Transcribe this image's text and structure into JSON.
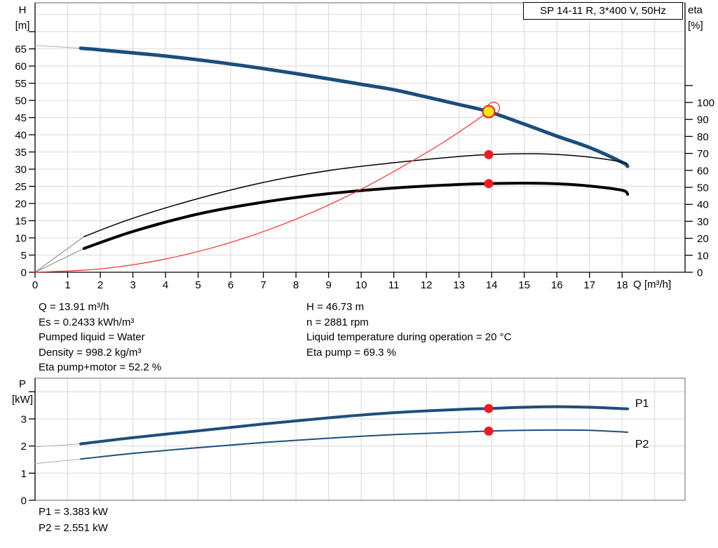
{
  "title_box": {
    "label": "SP 14-11 R, 3*400 V, 50Hz"
  },
  "colors": {
    "curve_blue": "#1b4e7e",
    "curve_black": "#000000",
    "curve_red": "#ff2b25",
    "marker_red": "#ec1c24",
    "marker_yellow": "#ffe60a",
    "lead_blue": "#9fb0c8",
    "lead_gray": "#808080",
    "grid": "#d9d9d9",
    "frame": "#666666",
    "axis": "#000000",
    "label_blue": "#1b4e7e"
  },
  "annotations": {
    "left": [
      "Q = 13.91 m³/h",
      "Es = 0.2433 kWh/m³",
      "Pumped liquid = Water",
      "Density = 998.2 kg/m³",
      "Eta pump+motor = 52.2 %"
    ],
    "right": [
      "H = 46.73 m",
      "n = 2881 rpm",
      "Liquid temperature during operation = 20 °C",
      "Eta pump = 69.3 %"
    ],
    "power": [
      "P1 = 3.383 kW",
      "P2 = 2.551 kW"
    ]
  },
  "chart_data": [
    {
      "type": "line",
      "title": "SP 14-11 R, 3*400 V, 50Hz",
      "x_axis": {
        "label": "Q [m³/h]",
        "min": 0,
        "max": 19.93,
        "grid_step": 1,
        "tick_step": 1,
        "tick_max": 18,
        "label_max": 18
      },
      "y_left": {
        "name": "H",
        "unit": "[m]",
        "min": 0,
        "max": 78.4,
        "grid_step": 5,
        "tick_step": 5,
        "tick_max": 70,
        "label_max": 65
      },
      "y_right": {
        "name": "eta",
        "unit": "[%]",
        "min": 0,
        "max": 158.7,
        "tick_step": 10,
        "tick_max": 110,
        "label_max": 100
      },
      "series": [
        {
          "name": "H-curve-lead",
          "axis": "left",
          "color": "lead_blue",
          "width": 1,
          "points": [
            [
              0,
              66.0
            ],
            [
              1.4,
              65.2
            ]
          ]
        },
        {
          "name": "H-curve",
          "axis": "left",
          "color": "curve_blue",
          "width": 5,
          "points": [
            [
              1.4,
              65.2
            ],
            [
              2,
              64.7
            ],
            [
              4,
              62.9
            ],
            [
              6,
              60.6
            ],
            [
              8,
              57.8
            ],
            [
              10,
              54.7
            ],
            [
              11,
              53.1
            ],
            [
              12,
              51.0
            ],
            [
              13,
              48.8
            ],
            [
              13.91,
              46.73
            ],
            [
              15,
              43.1
            ],
            [
              16,
              39.6
            ],
            [
              17,
              36.3
            ],
            [
              18,
              32.0
            ],
            [
              18.17,
              30.8
            ]
          ]
        },
        {
          "name": "eta-pump-lead",
          "axis": "right",
          "color": "lead_gray",
          "width": 1,
          "points": [
            [
              0,
              0
            ],
            [
              1.5,
              21
            ]
          ]
        },
        {
          "name": "eta-pump-motor-lead",
          "axis": "right",
          "color": "lead_gray",
          "width": 1,
          "points": [
            [
              0,
              0
            ],
            [
              1.5,
              14
            ]
          ]
        },
        {
          "name": "eta-pump",
          "axis": "right",
          "color": "curve_black",
          "width": 1.5,
          "points": [
            [
              1.5,
              21
            ],
            [
              3,
              31.8
            ],
            [
              5,
              43.4
            ],
            [
              7,
              52.9
            ],
            [
              9,
              59.9
            ],
            [
              11,
              64.5
            ],
            [
              13,
              68.2
            ],
            [
              13.91,
              69.3
            ],
            [
              15,
              69.8
            ],
            [
              16,
              69.4
            ],
            [
              17,
              67.8
            ],
            [
              18,
              64.9
            ],
            [
              18.17,
              63.4
            ]
          ]
        },
        {
          "name": "eta-pump-motor",
          "axis": "right",
          "color": "curve_black",
          "width": 4,
          "points": [
            [
              1.5,
              14
            ],
            [
              3,
              24.0
            ],
            [
              5,
              34.3
            ],
            [
              7,
              41.3
            ],
            [
              9,
              46.3
            ],
            [
              11,
              49.6
            ],
            [
              13,
              51.7
            ],
            [
              13.91,
              52.2
            ],
            [
              15,
              52.5
            ],
            [
              16,
              52.1
            ],
            [
              17,
              50.8
            ],
            [
              18,
              48.3
            ],
            [
              18.17,
              45.9
            ]
          ]
        },
        {
          "name": "system-curve",
          "axis": "left",
          "color": "curve_red",
          "width": 1.2,
          "points": [
            [
              0,
              0
            ],
            [
              2,
              0.97
            ],
            [
              4,
              3.86
            ],
            [
              6,
              8.69
            ],
            [
              8,
              15.46
            ],
            [
              10,
              24.15
            ],
            [
              12,
              34.78
            ],
            [
              13,
              40.81
            ],
            [
              13.91,
              46.73
            ]
          ]
        }
      ],
      "markers": [
        {
          "kind": "duty",
          "axis": "left",
          "x": 13.91,
          "y": 46.73
        },
        {
          "kind": "dot",
          "axis": "right",
          "x": 13.91,
          "y": 69.3
        },
        {
          "kind": "dot",
          "axis": "right",
          "x": 13.91,
          "y": 52.2
        }
      ]
    },
    {
      "type": "line",
      "x_axis": {
        "min": 0,
        "max": 19.93,
        "grid_step": 1
      },
      "y_left": {
        "name": "P",
        "unit": "[kW]",
        "min": 0,
        "max": 4.5,
        "grid_step": 1,
        "tick_step": 1,
        "tick_max": 4,
        "label_max": 3
      },
      "series": [
        {
          "name": "P1-lead",
          "axis": "left",
          "color": "lead_blue",
          "width": 1,
          "points": [
            [
              0,
              1.97
            ],
            [
              1.4,
              2.08
            ]
          ]
        },
        {
          "name": "P1",
          "axis": "left",
          "color": "curve_blue",
          "width": 4,
          "label": "P1",
          "label_at": [
            18.4,
            3.44
          ],
          "points": [
            [
              1.4,
              2.08
            ],
            [
              3,
              2.31
            ],
            [
              5,
              2.56
            ],
            [
              7,
              2.81
            ],
            [
              9,
              3.04
            ],
            [
              11,
              3.23
            ],
            [
              13,
              3.35
            ],
            [
              13.91,
              3.383
            ],
            [
              15,
              3.43
            ],
            [
              16,
              3.45
            ],
            [
              17,
              3.43
            ],
            [
              18.17,
              3.37
            ]
          ]
        },
        {
          "name": "P2-lead",
          "axis": "left",
          "color": "lead_blue",
          "width": 1,
          "points": [
            [
              0,
              1.35
            ],
            [
              1.4,
              1.52
            ]
          ]
        },
        {
          "name": "P2",
          "axis": "left",
          "color": "curve_blue",
          "width": 2,
          "label": "P2",
          "label_at": [
            18.4,
            1.94
          ],
          "points": [
            [
              1.4,
              1.52
            ],
            [
              3,
              1.73
            ],
            [
              5,
              1.94
            ],
            [
              7,
              2.13
            ],
            [
              9,
              2.29
            ],
            [
              11,
              2.42
            ],
            [
              13,
              2.51
            ],
            [
              13.91,
              2.551
            ],
            [
              15,
              2.58
            ],
            [
              16,
              2.59
            ],
            [
              17,
              2.58
            ],
            [
              18.17,
              2.51
            ]
          ]
        }
      ],
      "markers": [
        {
          "kind": "dot",
          "axis": "left",
          "x": 13.91,
          "y": 3.383
        },
        {
          "kind": "dot",
          "axis": "left",
          "x": 13.91,
          "y": 2.551
        }
      ]
    }
  ]
}
